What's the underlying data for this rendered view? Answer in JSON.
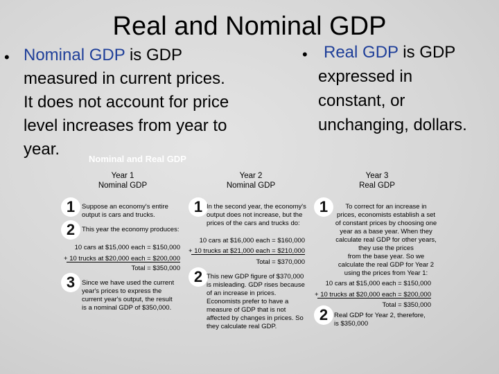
{
  "slide": {
    "title": "Real and Nominal GDP",
    "left_bullet": {
      "term": "Nominal GDP",
      "rest_line1": " is GDP",
      "line2": "measured in current prices.",
      "line3": "It does not account for price",
      "line4": "level increases from year to",
      "line5": "year."
    },
    "right_bullet": {
      "term": "Real GDP",
      "rest_line1": " is GDP",
      "line2": "expressed in",
      "line3": "constant, or",
      "line4": "unchanging, dollars."
    },
    "subtitle": "Nominal and Real GDP"
  },
  "columns": [
    {
      "head_line1": "Year 1",
      "head_line2": "Nominal GDP",
      "step1": [
        "Suppose an economy's entire",
        "output is cars and trucks."
      ],
      "step2": "This year the economy produces:",
      "calc": [
        "10 cars at $15,000 each = $150,000",
        "+ 10 trucks at $20,000 each = $200,000",
        "Total = $350,000"
      ],
      "step3": [
        "Since we have used the current",
        "year's prices to express the",
        "current year's output, the result",
        "is a nominal GDP of $350,000."
      ]
    },
    {
      "head_line1": "Year 2",
      "head_line2": "Nominal GDP",
      "step1": [
        "In the second year, the economy's",
        "output does not increase, but the",
        "prices of the cars and trucks do:"
      ],
      "calc": [
        "10 cars at $16,000 each = $160,000",
        "+ 10 trucks at $21,000 each = $210,000",
        "Total = $370,000"
      ],
      "step2": [
        "This new GDP figure of $370,000",
        "is misleading. GDP rises because",
        "of an increase in prices.",
        "Economists prefer to have a",
        "measure of GDP that is not",
        "affected by changes in prices. So",
        "they calculate real GDP."
      ]
    },
    {
      "head_line1": "Year 3",
      "head_line2": "Real GDP",
      "step1": [
        "To correct for an increase in",
        "prices, economists establish a set",
        "of constant prices by choosing one",
        "year as a base year. When they",
        "calculate real GDP for other years,",
        "they use the prices",
        "from the base year. So we",
        "calculate the real GDP for Year 2",
        "using the prices from Year 1:"
      ],
      "calc": [
        "10 cars at $15,000 each = $150,000",
        "+ 10 trucks at $20,000 each = $200,000",
        "Total = $350,000"
      ],
      "step2": [
        "Real GDP for Year 2, therefore,",
        "is $350,000"
      ]
    }
  ],
  "numbers": [
    "1",
    "2",
    "3"
  ]
}
